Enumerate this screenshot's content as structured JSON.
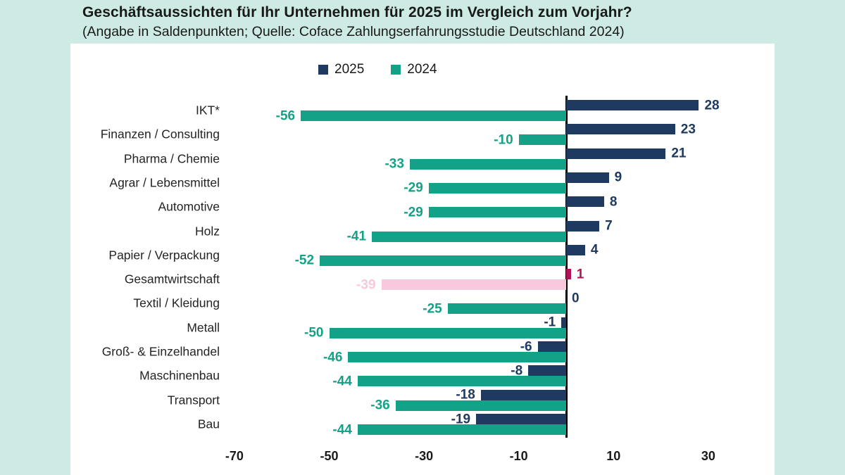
{
  "title": "Geschäftsaussichten für Ihr Unternehmen für 2025 im Vergleich zum Vorjahr?",
  "subtitle": "(Angabe in Saldenpunkten; Quelle: Coface Zahlungserfahrungsstudie Deutschland 2024)",
  "legend": [
    {
      "label": "2025",
      "color": "#1f3a60"
    },
    {
      "label": "2024",
      "color": "#13a287"
    }
  ],
  "colors": {
    "background_mint": "#cdebe4",
    "panel_white": "#ffffff",
    "series_2025_navy": "#1f3a60",
    "series_2024_teal": "#13a287",
    "highlight_2025_crimson": "#b01457",
    "highlight_2024_pink": "#f8c9dd",
    "zero_line_black": "#000000",
    "text_dark": "#191919"
  },
  "chart_data": {
    "type": "bar",
    "orientation": "horizontal",
    "title": "Geschäftsaussichten für Ihr Unternehmen für 2025 im Vergleich zum Vorjahr?",
    "subtitle": "(Angabe in Saldenpunkten; Quelle: Coface Zahlungserfahrungsstudie Deutschland 2024)",
    "categories": [
      "IKT*",
      "Finanzen / Consulting",
      "Pharma / Chemie",
      "Agrar / Lebensmittel",
      "Automotive",
      "Holz",
      "Papier / Verpackung",
      "Gesamtwirtschaft",
      "Textil / Kleidung",
      "Metall",
      "Groß- & Einzelhandel",
      "Maschinenbau",
      "Transport",
      "Bau"
    ],
    "series": [
      {
        "name": "2025",
        "values": [
          28,
          23,
          21,
          9,
          8,
          7,
          4,
          1,
          0,
          -1,
          -6,
          -8,
          -18,
          -19
        ]
      },
      {
        "name": "2024",
        "values": [
          -56,
          -10,
          -33,
          -29,
          -29,
          -41,
          -52,
          -39,
          -25,
          -50,
          -46,
          -44,
          -36,
          -44
        ]
      }
    ],
    "highlight": {
      "category": "Gesamtwirtschaft",
      "color_2025": "#b01457",
      "color_2024": "#f8c9dd"
    },
    "x_ticks": [
      -70,
      -50,
      -30,
      -10,
      10,
      30
    ],
    "xlim": [
      -75,
      45
    ],
    "grid": false,
    "legend_position": "top",
    "value_labels": "outside-bar-ends"
  }
}
